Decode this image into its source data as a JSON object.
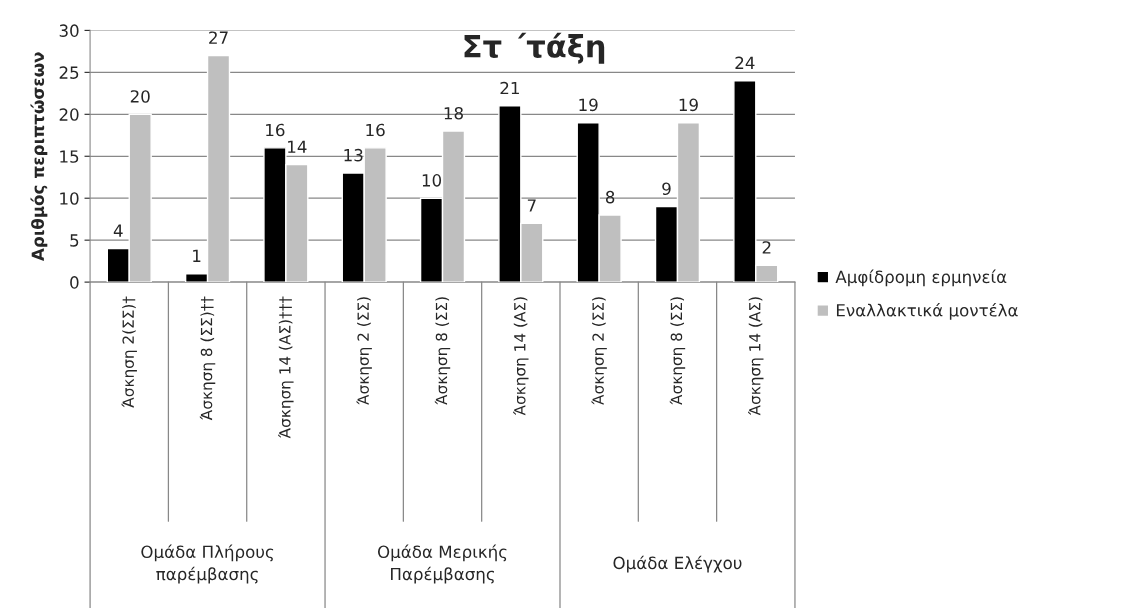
{
  "chart_data": {
    "type": "bar",
    "title": "Στ ΄τάξη",
    "ylabel": "Αριθμός περιπτώσεων",
    "categories": [
      "Άσκηση 2(ΣΣ)†",
      "Άσκηση 8 (ΣΣ)††",
      "Άσκηση 14 (ΑΣ)†††",
      "Άσκηση 2 (ΣΣ)",
      "Άσκηση 8 (ΣΣ)",
      "Άσκηση 14 (ΑΣ)",
      "Άσκηση 2 (ΣΣ)",
      "Άσκηση 8 (ΣΣ)",
      "Άσκηση 14 (ΑΣ)"
    ],
    "annotations": [
      "Ομάδα Πλήρους\nπαρέμβασης",
      "Ομάδα Μερικής\nΠαρέμβασης",
      "Ομάδα Ελέγχου"
    ],
    "series": [
      {
        "name": "Αμφίδρομη ερμηνεία",
        "color": "#000000",
        "values": [
          4,
          1,
          16,
          13,
          10,
          21,
          19,
          9,
          24
        ]
      },
      {
        "name": "Εναλλακτικά μοντέλα",
        "color": "#bfbfbf",
        "values": [
          20,
          27,
          14,
          16,
          18,
          7,
          8,
          19,
          2
        ]
      }
    ],
    "ylim": [
      0,
      30
    ],
    "yticks": [
      0,
      5,
      10,
      15,
      20,
      25,
      30
    ],
    "grid": "y",
    "legend": "right",
    "data_labels": true
  }
}
